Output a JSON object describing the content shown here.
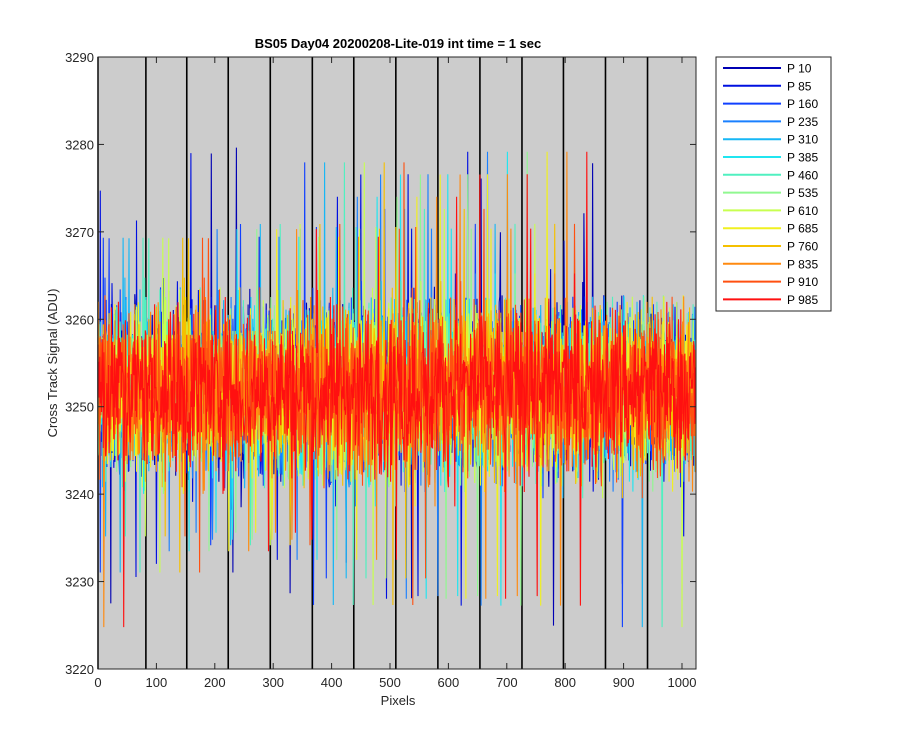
{
  "chart_data": {
    "type": "line",
    "title": "BS05 Day04 20200208-Lite-019 int time = 1 sec",
    "xlabel": "Pixels",
    "ylabel": "Cross Track Signal (ADU)",
    "xlim": [
      0,
      1024
    ],
    "ylim": [
      3220,
      3290
    ],
    "xticks": [
      0,
      100,
      200,
      300,
      400,
      500,
      600,
      700,
      800,
      900,
      1000
    ],
    "yticks": [
      3220,
      3230,
      3240,
      3250,
      3260,
      3270,
      3280,
      3290
    ],
    "x_tick_labels": [
      "0",
      "100",
      "200",
      "300",
      "400",
      "500",
      "600",
      "700",
      "800",
      "900",
      "1000"
    ],
    "y_tick_labels": [
      "3220",
      "3230",
      "3240",
      "3250",
      "3260",
      "3270",
      "3280",
      "3290"
    ],
    "plot_background": "#cccccc",
    "grid": false,
    "vertical_markers": [
      0,
      82,
      152,
      223,
      295,
      367,
      438,
      510,
      582,
      654,
      726,
      797,
      869,
      941
    ],
    "legend_position": "outside-right",
    "series_count_points": 1024,
    "series_profile": {
      "mean": 3252,
      "typical_min": 3236,
      "typical_max": 3268,
      "extreme_min": 3222,
      "extreme_max": 3281
    },
    "series": [
      {
        "name": "P 10",
        "color": "#0000b3"
      },
      {
        "name": "P 85",
        "color": "#0010e0"
      },
      {
        "name": "P 160",
        "color": "#1040ff"
      },
      {
        "name": "P 235",
        "color": "#1a80ff"
      },
      {
        "name": "P 310",
        "color": "#17b7f5"
      },
      {
        "name": "P 385",
        "color": "#20e5f0"
      },
      {
        "name": "P 460",
        "color": "#50f0c0"
      },
      {
        "name": "P 535",
        "color": "#90f890"
      },
      {
        "name": "P 610",
        "color": "#c8ff50"
      },
      {
        "name": "P 685",
        "color": "#f0f020"
      },
      {
        "name": "P 760",
        "color": "#f5c000"
      },
      {
        "name": "P 835",
        "color": "#ff8a10"
      },
      {
        "name": "P 910",
        "color": "#ff5010"
      },
      {
        "name": "P 985",
        "color": "#ff1010"
      }
    ]
  }
}
